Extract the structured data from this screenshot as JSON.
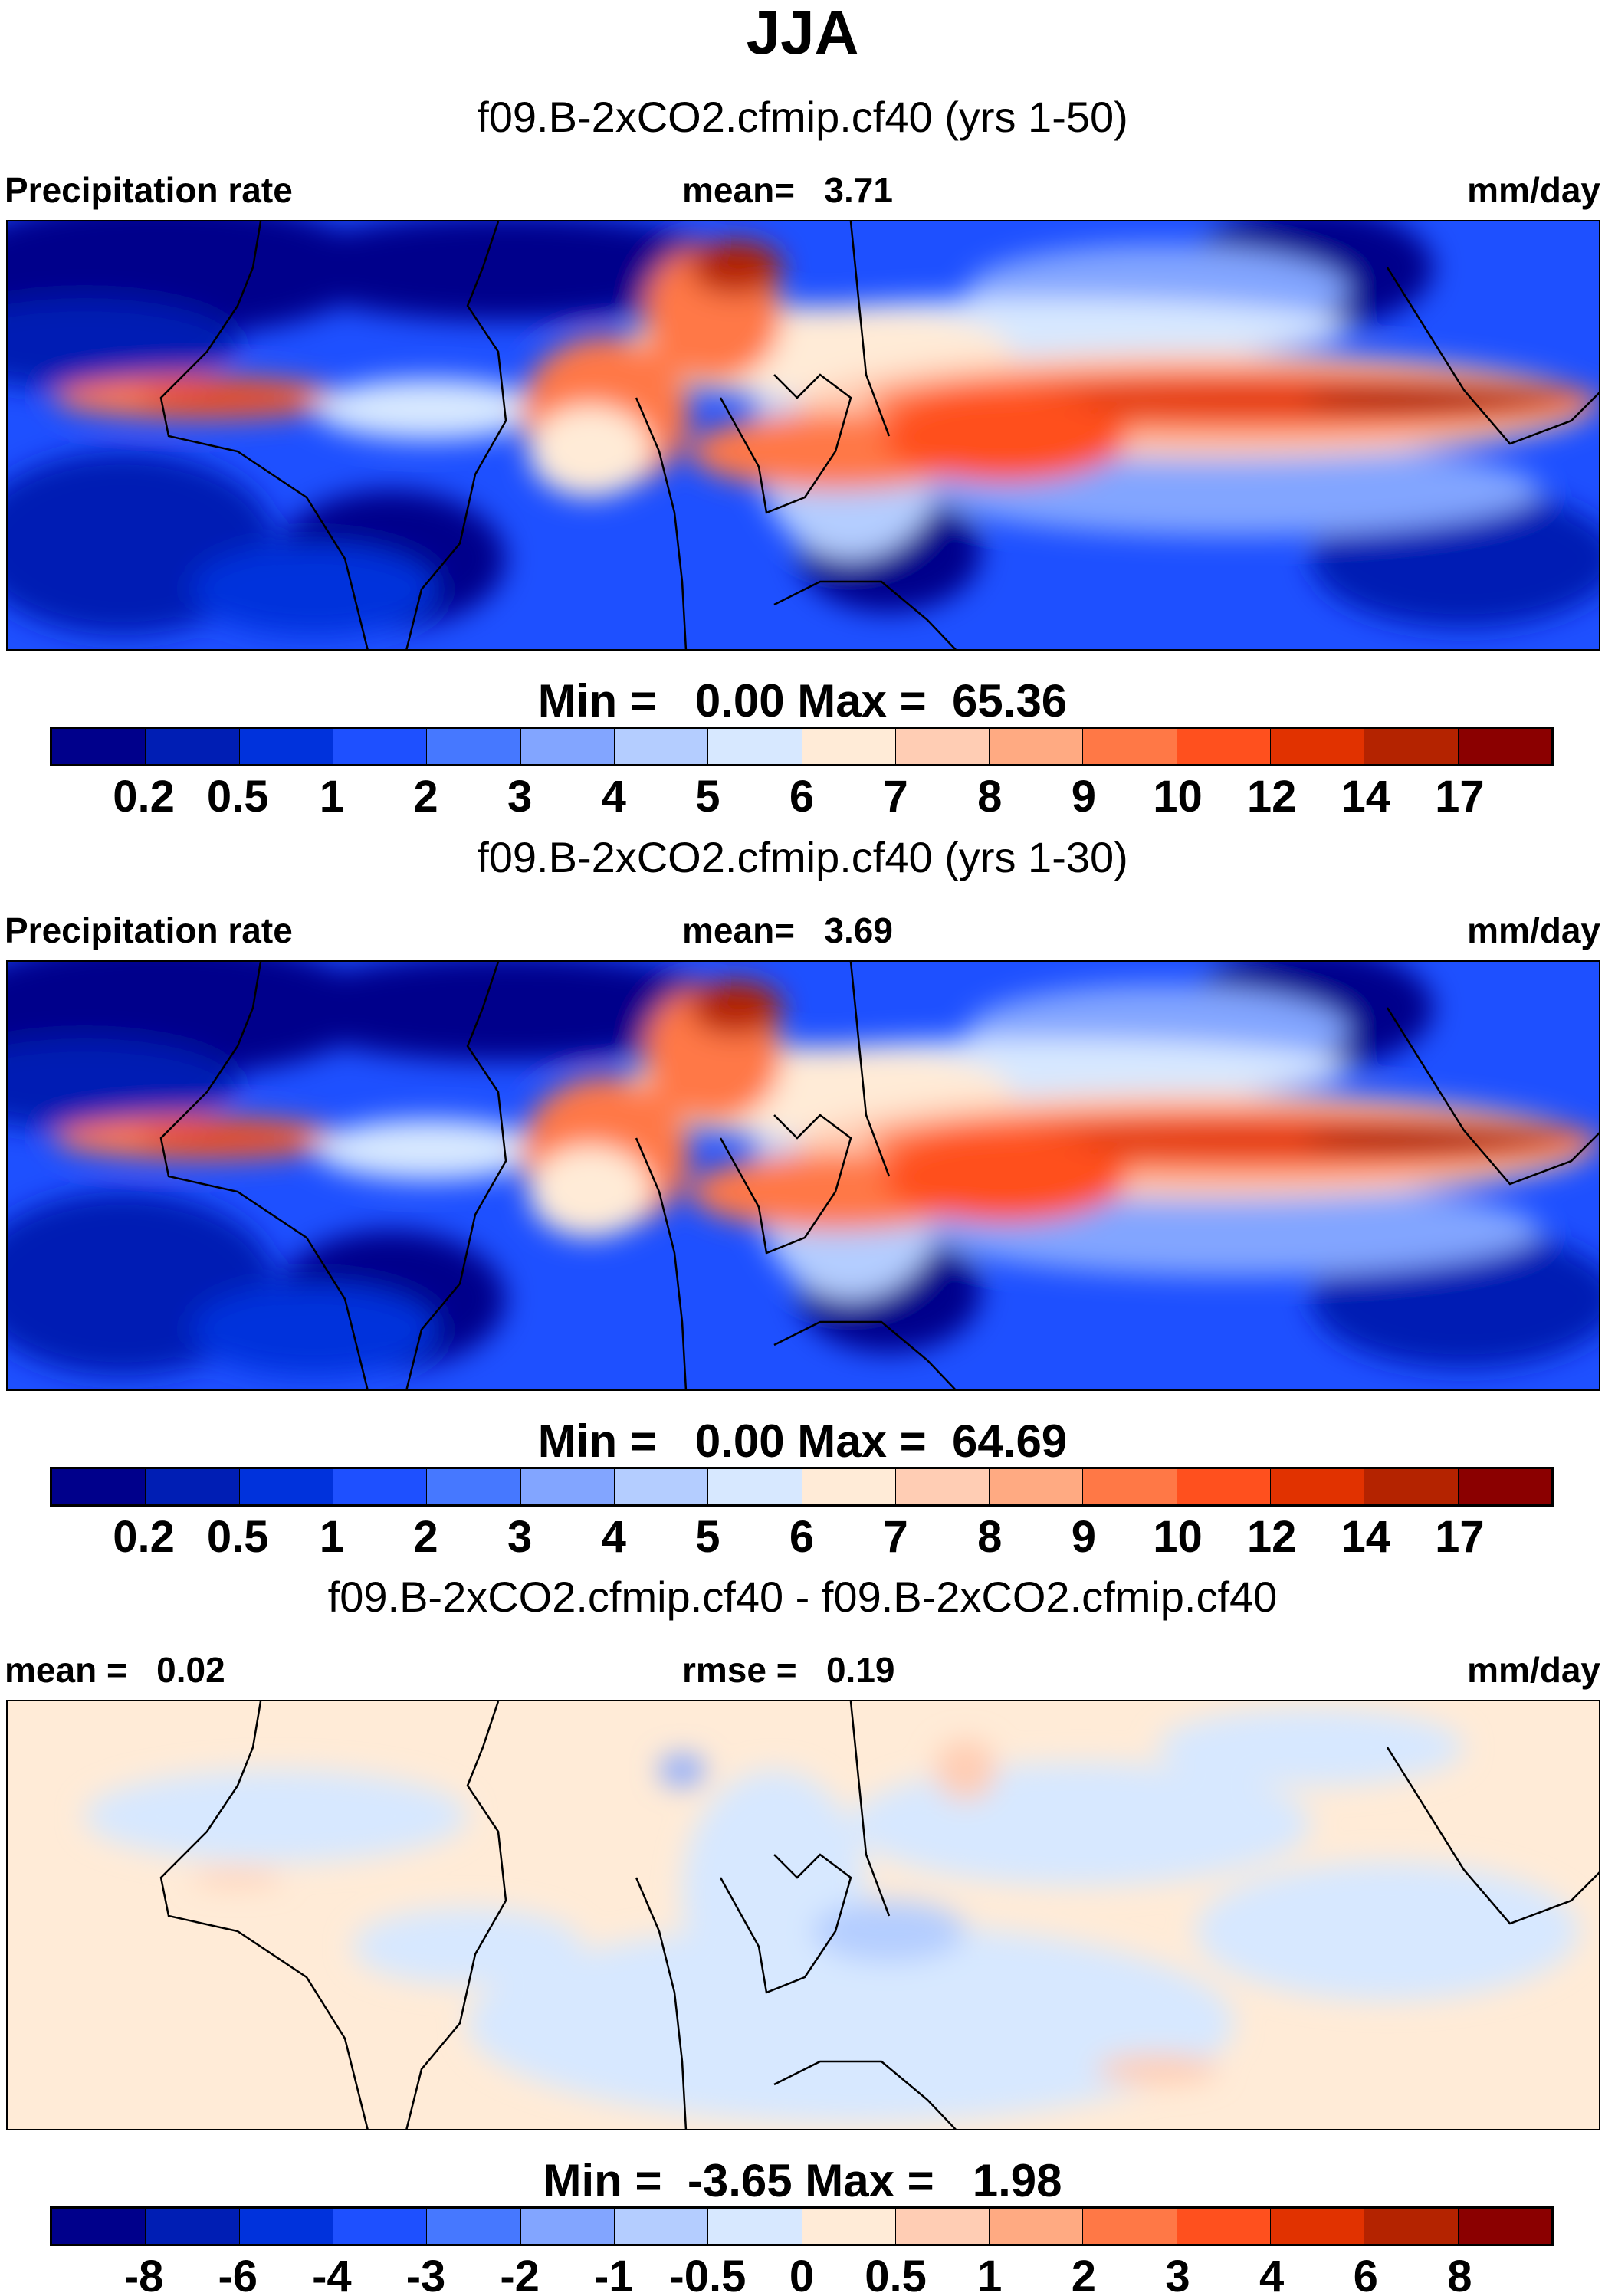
{
  "title": "JJA",
  "colorbar_colors": [
    "#00008b",
    "#001eb4",
    "#0032dc",
    "#1e50ff",
    "#4678ff",
    "#82a5ff",
    "#b4cdff",
    "#d7e8ff",
    "#ffebd7",
    "#ffcdb4",
    "#ffaa82",
    "#ff7846",
    "#ff501e",
    "#e13200",
    "#b42300",
    "#8b0000"
  ],
  "chart_data": [
    {
      "type": "heatmap",
      "title": "f09.B-2xCO2.cfmip.cf40 (yrs 1-50)",
      "variable": "Precipitation rate",
      "units": "mm/day",
      "mean": 3.71,
      "min": 0.0,
      "max": 65.36,
      "levels": [
        0.2,
        0.5,
        1,
        2,
        3,
        4,
        5,
        6,
        7,
        8,
        9,
        10,
        12,
        14,
        17
      ]
    },
    {
      "type": "heatmap",
      "title": "f09.B-2xCO2.cfmip.cf40 (yrs 1-30)",
      "variable": "Precipitation rate",
      "units": "mm/day",
      "mean": 3.69,
      "min": 0.0,
      "max": 64.69,
      "levels": [
        0.2,
        0.5,
        1,
        2,
        3,
        4,
        5,
        6,
        7,
        8,
        9,
        10,
        12,
        14,
        17
      ]
    },
    {
      "type": "heatmap",
      "title": "f09.B-2xCO2.cfmip.cf40 - f09.B-2xCO2.cfmip.cf40",
      "units": "mm/day",
      "mean": 0.02,
      "rmse": 0.19,
      "min": -3.65,
      "max": 1.98,
      "levels": [
        -8,
        -6,
        -4,
        -3,
        -2,
        -1,
        -0.5,
        0,
        0.5,
        1,
        2,
        3,
        4,
        6,
        8
      ]
    }
  ],
  "panels": [
    {
      "subtitle": "f09.B-2xCO2.cfmip.cf40 (yrs 1-50)",
      "left": "Precipitation rate",
      "center": "mean=   3.71",
      "right": "mm/day",
      "minmax": "Min =   0.00 Max =  65.36",
      "ticks": [
        "0.2",
        "0.5",
        "1",
        "2",
        "3",
        "4",
        "5",
        "6",
        "7",
        "8",
        "9",
        "10",
        "12",
        "14",
        "17"
      ]
    },
    {
      "subtitle": "f09.B-2xCO2.cfmip.cf40 (yrs 1-30)",
      "left": "Precipitation rate",
      "center": "mean=   3.69",
      "right": "mm/day",
      "minmax": "Min =   0.00 Max =  64.69",
      "ticks": [
        "0.2",
        "0.5",
        "1",
        "2",
        "3",
        "4",
        "5",
        "6",
        "7",
        "8",
        "9",
        "10",
        "12",
        "14",
        "17"
      ]
    },
    {
      "subtitle": "f09.B-2xCO2.cfmip.cf40 - f09.B-2xCO2.cfmip.cf40",
      "left": "mean =   0.02",
      "center": "rmse =   0.19",
      "right": "mm/day",
      "minmax": "Min =  -3.65 Max =   1.98",
      "ticks": [
        "-8",
        "-6",
        "-4",
        "-3",
        "-2",
        "-1",
        "-0.5",
        "0",
        "0.5",
        "1",
        "2",
        "3",
        "4",
        "6",
        "8"
      ]
    }
  ]
}
